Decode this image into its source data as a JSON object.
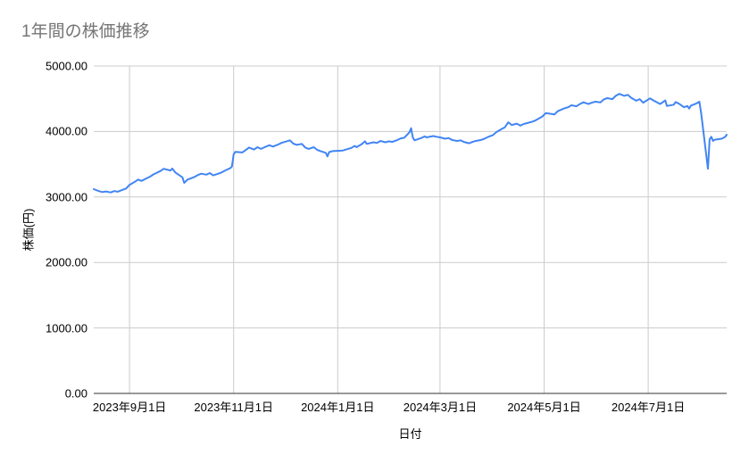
{
  "chart_data": {
    "type": "line",
    "title": "1年間の株価推移",
    "xlabel": "日付",
    "ylabel": "株価(円)",
    "ylim": [
      0,
      5000
    ],
    "grid": true,
    "legend_position": "none",
    "colors": {
      "series": "#4285f4",
      "gridline": "#cccccc",
      "axis": "#333333",
      "title_text": "#757575",
      "tick_text": "#000000",
      "background": "#ffffff"
    },
    "y_ticks": [
      {
        "label": "5000.00",
        "value": 5000
      },
      {
        "label": "4000.00",
        "value": 4000
      },
      {
        "label": "3000.00",
        "value": 3000
      },
      {
        "label": "2000.00",
        "value": 2000
      },
      {
        "label": "1000.00",
        "value": 1000
      },
      {
        "label": "0.00",
        "value": 0
      }
    ],
    "x_ticks": [
      {
        "label": "2023年9月1日",
        "date": "2023-09-01"
      },
      {
        "label": "2023年11月1日",
        "date": "2023-11-01"
      },
      {
        "label": "2024年1月1日",
        "date": "2024-01-01"
      },
      {
        "label": "2024年3月1日",
        "date": "2024-03-01"
      },
      {
        "label": "2024年5月1日",
        "date": "2024-05-01"
      },
      {
        "label": "2024年7月1日",
        "date": "2024-07-01"
      }
    ],
    "x_domain": [
      "2023-08-11",
      "2024-08-16"
    ],
    "series": [
      {
        "name": "株価",
        "points": [
          [
            "2023-08-11",
            3120
          ],
          [
            "2023-08-14",
            3090
          ],
          [
            "2023-08-16",
            3075
          ],
          [
            "2023-08-18",
            3085
          ],
          [
            "2023-08-21",
            3070
          ],
          [
            "2023-08-23",
            3090
          ],
          [
            "2023-08-25",
            3080
          ],
          [
            "2023-08-28",
            3110
          ],
          [
            "2023-08-30",
            3130
          ],
          [
            "2023-09-01",
            3185
          ],
          [
            "2023-09-04",
            3230
          ],
          [
            "2023-09-06",
            3265
          ],
          [
            "2023-09-08",
            3245
          ],
          [
            "2023-09-11",
            3285
          ],
          [
            "2023-09-13",
            3310
          ],
          [
            "2023-09-15",
            3345
          ],
          [
            "2023-09-19",
            3395
          ],
          [
            "2023-09-21",
            3430
          ],
          [
            "2023-09-25",
            3405
          ],
          [
            "2023-09-26",
            3435
          ],
          [
            "2023-09-28",
            3370
          ],
          [
            "2023-10-02",
            3300
          ],
          [
            "2023-10-03",
            3215
          ],
          [
            "2023-10-05",
            3265
          ],
          [
            "2023-10-09",
            3305
          ],
          [
            "2023-10-11",
            3335
          ],
          [
            "2023-10-13",
            3355
          ],
          [
            "2023-10-16",
            3340
          ],
          [
            "2023-10-18",
            3365
          ],
          [
            "2023-10-20",
            3330
          ],
          [
            "2023-10-23",
            3355
          ],
          [
            "2023-10-25",
            3375
          ],
          [
            "2023-10-27",
            3405
          ],
          [
            "2023-10-30",
            3440
          ],
          [
            "2023-10-31",
            3465
          ],
          [
            "2023-11-01",
            3650
          ],
          [
            "2023-11-02",
            3690
          ],
          [
            "2023-11-06",
            3680
          ],
          [
            "2023-11-08",
            3715
          ],
          [
            "2023-11-10",
            3755
          ],
          [
            "2023-11-13",
            3725
          ],
          [
            "2023-11-15",
            3760
          ],
          [
            "2023-11-17",
            3735
          ],
          [
            "2023-11-20",
            3770
          ],
          [
            "2023-11-22",
            3790
          ],
          [
            "2023-11-24",
            3770
          ],
          [
            "2023-11-27",
            3800
          ],
          [
            "2023-11-29",
            3825
          ],
          [
            "2023-12-01",
            3840
          ],
          [
            "2023-12-04",
            3865
          ],
          [
            "2023-12-06",
            3815
          ],
          [
            "2023-12-08",
            3795
          ],
          [
            "2023-12-11",
            3810
          ],
          [
            "2023-12-13",
            3755
          ],
          [
            "2023-12-15",
            3735
          ],
          [
            "2023-12-18",
            3760
          ],
          [
            "2023-12-20",
            3720
          ],
          [
            "2023-12-22",
            3700
          ],
          [
            "2023-12-25",
            3675
          ],
          [
            "2023-12-26",
            3620
          ],
          [
            "2023-12-27",
            3685
          ],
          [
            "2023-12-29",
            3700
          ],
          [
            "2024-01-04",
            3710
          ],
          [
            "2024-01-09",
            3750
          ],
          [
            "2024-01-11",
            3780
          ],
          [
            "2024-01-12",
            3760
          ],
          [
            "2024-01-15",
            3805
          ],
          [
            "2024-01-17",
            3850
          ],
          [
            "2024-01-18",
            3810
          ],
          [
            "2024-01-22",
            3835
          ],
          [
            "2024-01-24",
            3825
          ],
          [
            "2024-01-26",
            3855
          ],
          [
            "2024-01-29",
            3835
          ],
          [
            "2024-01-31",
            3850
          ],
          [
            "2024-02-02",
            3840
          ],
          [
            "2024-02-05",
            3870
          ],
          [
            "2024-02-07",
            3895
          ],
          [
            "2024-02-09",
            3905
          ],
          [
            "2024-02-12",
            3985
          ],
          [
            "2024-02-13",
            4050
          ],
          [
            "2024-02-14",
            3910
          ],
          [
            "2024-02-15",
            3865
          ],
          [
            "2024-02-19",
            3900
          ],
          [
            "2024-02-21",
            3925
          ],
          [
            "2024-02-22",
            3910
          ],
          [
            "2024-02-26",
            3930
          ],
          [
            "2024-02-28",
            3920
          ],
          [
            "2024-03-01",
            3910
          ],
          [
            "2024-03-04",
            3890
          ],
          [
            "2024-03-06",
            3900
          ],
          [
            "2024-03-08",
            3870
          ],
          [
            "2024-03-11",
            3855
          ],
          [
            "2024-03-13",
            3865
          ],
          [
            "2024-03-15",
            3840
          ],
          [
            "2024-03-18",
            3820
          ],
          [
            "2024-03-21",
            3850
          ],
          [
            "2024-03-25",
            3870
          ],
          [
            "2024-03-27",
            3890
          ],
          [
            "2024-03-29",
            3915
          ],
          [
            "2024-04-01",
            3945
          ],
          [
            "2024-04-03",
            3990
          ],
          [
            "2024-04-05",
            4020
          ],
          [
            "2024-04-08",
            4065
          ],
          [
            "2024-04-10",
            4140
          ],
          [
            "2024-04-12",
            4100
          ],
          [
            "2024-04-15",
            4120
          ],
          [
            "2024-04-17",
            4090
          ],
          [
            "2024-04-19",
            4115
          ],
          [
            "2024-04-22",
            4135
          ],
          [
            "2024-04-24",
            4150
          ],
          [
            "2024-04-26",
            4170
          ],
          [
            "2024-04-30",
            4230
          ],
          [
            "2024-05-02",
            4280
          ],
          [
            "2024-05-07",
            4260
          ],
          [
            "2024-05-09",
            4310
          ],
          [
            "2024-05-13",
            4355
          ],
          [
            "2024-05-15",
            4370
          ],
          [
            "2024-05-17",
            4400
          ],
          [
            "2024-05-20",
            4385
          ],
          [
            "2024-05-22",
            4420
          ],
          [
            "2024-05-24",
            4445
          ],
          [
            "2024-05-27",
            4420
          ],
          [
            "2024-05-29",
            4440
          ],
          [
            "2024-05-31",
            4455
          ],
          [
            "2024-06-03",
            4445
          ],
          [
            "2024-06-05",
            4490
          ],
          [
            "2024-06-07",
            4510
          ],
          [
            "2024-06-10",
            4495
          ],
          [
            "2024-06-12",
            4545
          ],
          [
            "2024-06-14",
            4575
          ],
          [
            "2024-06-17",
            4545
          ],
          [
            "2024-06-19",
            4560
          ],
          [
            "2024-06-21",
            4515
          ],
          [
            "2024-06-24",
            4470
          ],
          [
            "2024-06-26",
            4495
          ],
          [
            "2024-06-28",
            4440
          ],
          [
            "2024-07-02",
            4505
          ],
          [
            "2024-07-04",
            4475
          ],
          [
            "2024-07-08",
            4420
          ],
          [
            "2024-07-10",
            4455
          ],
          [
            "2024-07-11",
            4475
          ],
          [
            "2024-07-12",
            4390
          ],
          [
            "2024-07-16",
            4410
          ],
          [
            "2024-07-17",
            4450
          ],
          [
            "2024-07-19",
            4425
          ],
          [
            "2024-07-22",
            4370
          ],
          [
            "2024-07-24",
            4390
          ],
          [
            "2024-07-25",
            4350
          ],
          [
            "2024-07-26",
            4395
          ],
          [
            "2024-07-29",
            4425
          ],
          [
            "2024-07-31",
            4455
          ],
          [
            "2024-08-01",
            4290
          ],
          [
            "2024-08-02",
            4080
          ],
          [
            "2024-08-05",
            3430
          ],
          [
            "2024-08-06",
            3880
          ],
          [
            "2024-08-07",
            3920
          ],
          [
            "2024-08-08",
            3855
          ],
          [
            "2024-08-09",
            3875
          ],
          [
            "2024-08-13",
            3890
          ],
          [
            "2024-08-15",
            3915
          ],
          [
            "2024-08-16",
            3950
          ]
        ]
      }
    ]
  }
}
